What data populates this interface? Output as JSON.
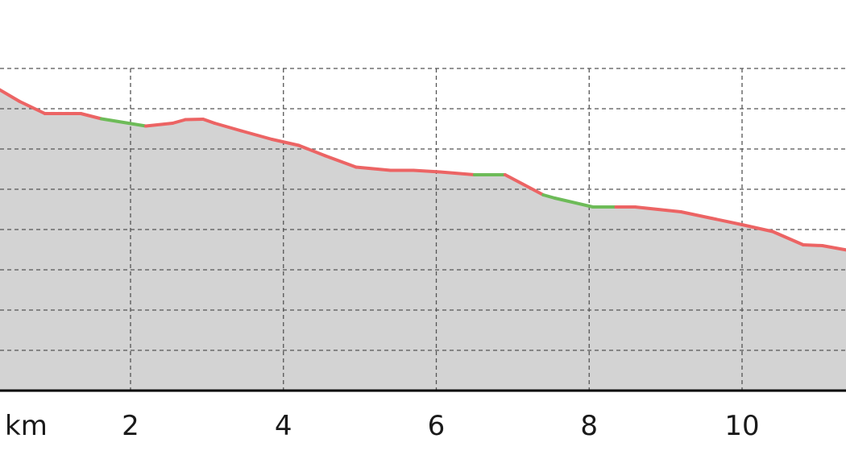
{
  "chart_data": {
    "type": "area",
    "xlabel": "km",
    "x_ticks": [
      2,
      4,
      6,
      8,
      10
    ],
    "x_tick_labels": [
      "2",
      "4",
      "6",
      "8",
      "10"
    ],
    "xlim": [
      0.28,
      11.4
    ],
    "ylim": [
      0,
      8
    ],
    "y_gridlines": [
      1,
      2,
      3,
      4,
      5,
      6,
      7,
      8
    ],
    "y_tick_labels": [],
    "grid": true,
    "legend": "none",
    "fill_color": "#d3d3d3",
    "colors": {
      "climb": "#ec6464",
      "flat": "#6dbb58",
      "grid": "#555555",
      "axis": "#000000",
      "background": "#ffffff"
    },
    "series": [
      {
        "x": [
          0.28,
          0.55,
          0.88,
          1.35,
          1.62,
          2.2,
          2.55,
          2.72,
          2.95,
          3.1,
          3.45,
          3.85,
          4.2,
          4.55,
          4.95,
          5.4,
          5.7,
          6.05,
          6.5,
          6.9,
          7.4,
          7.55,
          8.05,
          8.35,
          8.6,
          9.2,
          9.6,
          10.0,
          10.4,
          10.8,
          11.05,
          11.4
        ],
        "y": [
          7.48,
          7.18,
          6.88,
          6.88,
          6.75,
          6.57,
          6.64,
          6.73,
          6.74,
          6.64,
          6.45,
          6.24,
          6.09,
          5.83,
          5.55,
          5.47,
          5.47,
          5.43,
          5.36,
          5.36,
          4.86,
          4.78,
          4.56,
          4.56,
          4.56,
          4.44,
          4.28,
          4.12,
          3.95,
          3.62,
          3.6,
          3.48
        ]
      }
    ],
    "segment_colors": [
      "climb",
      "climb",
      "climb",
      "climb",
      "flat",
      "climb",
      "climb",
      "climb",
      "climb",
      "climb",
      "climb",
      "climb",
      "climb",
      "climb",
      "climb",
      "climb",
      "climb",
      "climb",
      "flat",
      "climb",
      "flat",
      "flat",
      "flat",
      "climb",
      "climb",
      "climb",
      "climb",
      "climb",
      "climb",
      "climb",
      "climb"
    ]
  }
}
